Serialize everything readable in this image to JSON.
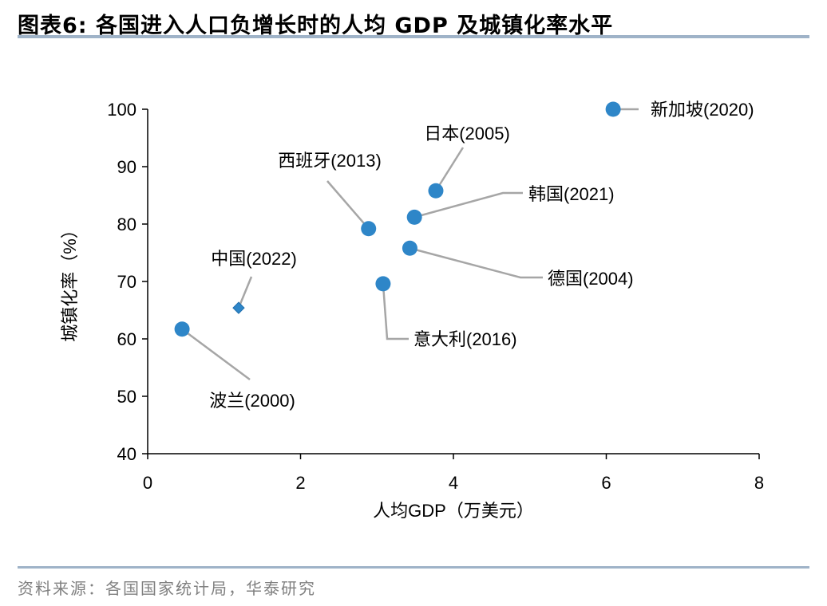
{
  "title": "图表6:  各国进入人口负增长时的人均 GDP 及城镇化率水平",
  "footer": "资料来源：各国国家统计局，华泰研究",
  "chart_data": {
    "type": "scatter",
    "title": "",
    "xlabel": "人均GDP（万美元）",
    "ylabel": "城镇化率（%）",
    "xlim": [
      0,
      8
    ],
    "ylim": [
      40,
      100
    ],
    "xticks": [
      0,
      2,
      4,
      6,
      8
    ],
    "yticks": [
      40,
      50,
      60,
      70,
      80,
      90,
      100
    ],
    "grid": false,
    "marker_color": "#2e86c8",
    "leader_color": "#a6a6a6",
    "points": [
      {
        "label": "新加坡(2020)",
        "x": 6.09,
        "y": 100.0,
        "marker": "circle"
      },
      {
        "label": "日本(2005)",
        "x": 3.77,
        "y": 85.8,
        "marker": "circle"
      },
      {
        "label": "韩国(2021)",
        "x": 3.49,
        "y": 81.2,
        "marker": "circle"
      },
      {
        "label": "西班牙(2013)",
        "x": 2.89,
        "y": 79.2,
        "marker": "circle"
      },
      {
        "label": "德国(2004)",
        "x": 3.43,
        "y": 75.8,
        "marker": "circle"
      },
      {
        "label": "意大利(2016)",
        "x": 3.08,
        "y": 69.6,
        "marker": "circle"
      },
      {
        "label": "中国(2022)",
        "x": 1.19,
        "y": 65.4,
        "marker": "diamond"
      },
      {
        "label": "波兰(2000)",
        "x": 0.45,
        "y": 61.7,
        "marker": "circle"
      }
    ]
  }
}
